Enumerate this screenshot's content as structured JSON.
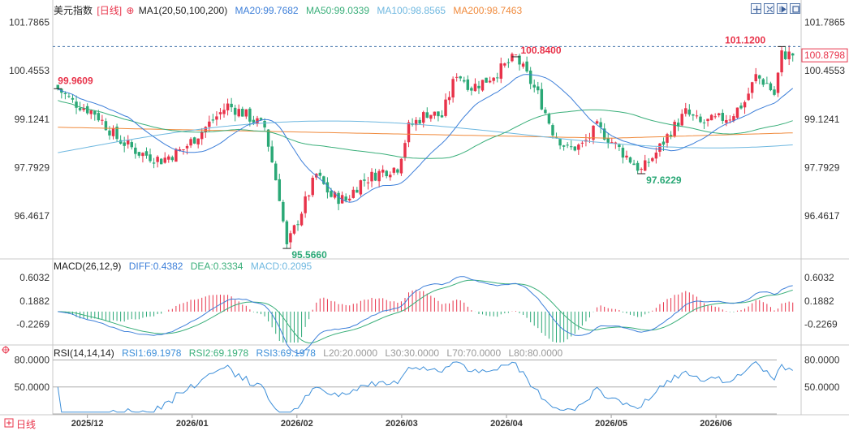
{
  "header": {
    "title": "美元指数",
    "period": "[日线]",
    "ma_label": "MA1(20,50,100,200)",
    "ma20": "MA20:99.7682",
    "ma50": "MA50:99.0339",
    "ma100": "MA100:98.8565",
    "ma200": "MA200:98.7463"
  },
  "macd_header": {
    "label": "MACD(26,12,9)",
    "diff": "DIFF:0.4382",
    "dea": "DEA:0.3334",
    "macd": "MACD:0.2095"
  },
  "rsi_header": {
    "label": "RSI(14,14,14)",
    "rsi1": "RSI1:69.1978",
    "rsi2": "RSI2:69.1978",
    "rsi3": "RSI3:69.1978",
    "l20": "L20:20.0000",
    "l30": "L30:30.0000",
    "l70": "L70:70.0000",
    "l80": "L80:80.0000"
  },
  "footer": {
    "period_button": "日线"
  },
  "colors": {
    "up": "#e8334a",
    "down": "#2aa876",
    "ma20": "#3d7fd9",
    "ma50": "#3aaf7a",
    "ma100": "#6fb8e0",
    "ma200": "#f08a3c",
    "diff": "#3d7fd9",
    "dea": "#3aaf7a",
    "rsi": "#3d8fd9"
  },
  "chart_data": [
    {
      "type": "candlestick",
      "name": "price",
      "y_ticks": [
        "101.7865",
        "100.4553",
        "99.1241",
        "97.7929",
        "96.4617"
      ],
      "ylim": [
        95.3,
        102.0
      ],
      "x_ticks": [
        "2025/12",
        "2026/01",
        "2026/02",
        "2026/03",
        "2026/04",
        "2026/05",
        "2026/06"
      ],
      "current_price": "100.8798",
      "annotations": {
        "a_high_start": "99.9609",
        "a_low": "95.5660",
        "a_high_mar": "100.8400",
        "a_low_may": "97.6229",
        "a_high_jun": "101.1200"
      },
      "key_points": [
        [
          0,
          99.96
        ],
        [
          4,
          99.6
        ],
        [
          10,
          99.3
        ],
        [
          16,
          98.6
        ],
        [
          22,
          98.2
        ],
        [
          28,
          98.0
        ],
        [
          34,
          98.3
        ],
        [
          40,
          98.9
        ],
        [
          46,
          99.5
        ],
        [
          50,
          99.3
        ],
        [
          56,
          98.9
        ],
        [
          60,
          97.0
        ],
        [
          62,
          95.6
        ],
        [
          66,
          96.6
        ],
        [
          70,
          97.6
        ],
        [
          74,
          97.0
        ],
        [
          78,
          96.9
        ],
        [
          82,
          97.4
        ],
        [
          88,
          97.7
        ],
        [
          92,
          97.8
        ],
        [
          95,
          98.9
        ],
        [
          100,
          99.3
        ],
        [
          104,
          99.2
        ],
        [
          108,
          100.4
        ],
        [
          112,
          100.0
        ],
        [
          116,
          100.2
        ],
        [
          120,
          100.5
        ],
        [
          124,
          100.84
        ],
        [
          130,
          99.8
        ],
        [
          134,
          98.8
        ],
        [
          138,
          98.3
        ],
        [
          142,
          98.4
        ],
        [
          146,
          98.9
        ],
        [
          150,
          98.5
        ],
        [
          154,
          98.1
        ],
        [
          158,
          97.7
        ],
        [
          162,
          98.2
        ],
        [
          166,
          98.8
        ],
        [
          170,
          99.3
        ],
        [
          174,
          99.0
        ],
        [
          178,
          99.1
        ],
        [
          182,
          99.2
        ],
        [
          186,
          99.6
        ],
        [
          189,
          100.3
        ],
        [
          192,
          100.1
        ],
        [
          194,
          99.8
        ],
        [
          196,
          100.9
        ]
      ],
      "n_bars": 200
    },
    {
      "type": "macd",
      "name": "MACD",
      "y_ticks": [
        "0.6032",
        "0.1882",
        "-0.2269"
      ],
      "ylim": [
        -0.55,
        0.72
      ]
    },
    {
      "type": "line",
      "name": "RSI",
      "y_ticks": [
        "80.0000",
        "50.0000"
      ],
      "ylim": [
        20,
        85
      ],
      "reference_lines": [
        80,
        50,
        20
      ]
    }
  ]
}
